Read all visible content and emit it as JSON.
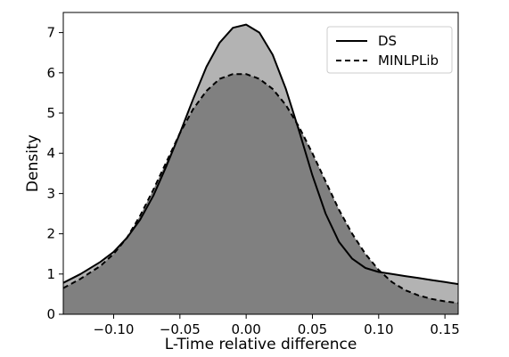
{
  "chart_data": {
    "type": "area",
    "xlabel": "L-Time relative difference",
    "ylabel": "Density",
    "xlim": [
      -0.138,
      0.16
    ],
    "ylim": [
      0,
      7.5
    ],
    "xticks": [
      -0.1,
      -0.05,
      0.0,
      0.05,
      0.1,
      0.15
    ],
    "xtick_labels": [
      "−0.10",
      "−0.05",
      "0.00",
      "0.05",
      "0.10",
      "0.15"
    ],
    "yticks": [
      0,
      1,
      2,
      3,
      4,
      5,
      6,
      7
    ],
    "ytick_labels": [
      "0",
      "1",
      "2",
      "3",
      "4",
      "5",
      "6",
      "7"
    ],
    "grid": false,
    "legend_position": "top-right",
    "series": [
      {
        "name": "DS",
        "line_style": "solid",
        "line_color": "#000000",
        "fill_color": "#b3b3b3",
        "x": [
          -0.138,
          -0.125,
          -0.11,
          -0.1,
          -0.09,
          -0.08,
          -0.07,
          -0.06,
          -0.05,
          -0.04,
          -0.03,
          -0.02,
          -0.01,
          0.0,
          0.01,
          0.02,
          0.03,
          0.04,
          0.05,
          0.06,
          0.07,
          0.08,
          0.09,
          0.1,
          0.11,
          0.12,
          0.13,
          0.14,
          0.15,
          0.16
        ],
        "y": [
          0.78,
          1.0,
          1.3,
          1.55,
          1.9,
          2.35,
          2.95,
          3.7,
          4.5,
          5.35,
          6.15,
          6.75,
          7.12,
          7.2,
          7.0,
          6.45,
          5.6,
          4.55,
          3.45,
          2.5,
          1.8,
          1.38,
          1.15,
          1.05,
          1.0,
          0.95,
          0.9,
          0.85,
          0.8,
          0.75
        ]
      },
      {
        "name": "MINLPLib",
        "line_style": "dashed",
        "line_color": "#000000",
        "fill_color": "#808080",
        "x": [
          -0.138,
          -0.125,
          -0.11,
          -0.1,
          -0.09,
          -0.08,
          -0.07,
          -0.06,
          -0.05,
          -0.04,
          -0.03,
          -0.02,
          -0.01,
          0.0,
          0.01,
          0.02,
          0.03,
          0.04,
          0.05,
          0.06,
          0.07,
          0.08,
          0.09,
          0.1,
          0.11,
          0.12,
          0.13,
          0.14,
          0.15,
          0.16
        ],
        "y": [
          0.65,
          0.88,
          1.2,
          1.5,
          1.9,
          2.45,
          3.1,
          3.8,
          4.5,
          5.1,
          5.55,
          5.85,
          5.97,
          5.97,
          5.85,
          5.6,
          5.2,
          4.65,
          4.0,
          3.3,
          2.6,
          2.0,
          1.5,
          1.1,
          0.8,
          0.6,
          0.47,
          0.38,
          0.32,
          0.28
        ]
      }
    ]
  }
}
